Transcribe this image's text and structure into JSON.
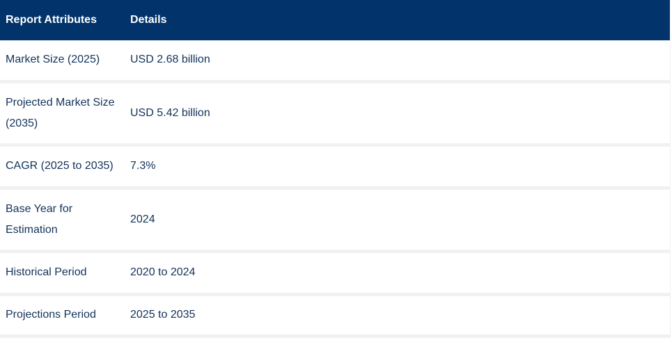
{
  "table": {
    "headers": {
      "attribute": "Report Attributes",
      "details": "Details"
    },
    "rows": [
      {
        "attribute": "Market Size (2025)",
        "details": "USD 2.68 billion"
      },
      {
        "attribute": "Projected Market Size (2035)",
        "details": "USD 5.42 billion"
      },
      {
        "attribute": "CAGR (2025 to 2035)",
        "details": "7.3%"
      },
      {
        "attribute": "Base Year for Estimation",
        "details": "2024"
      },
      {
        "attribute": "Historical Period",
        "details": "2020 to 2024"
      },
      {
        "attribute": "Projections Period",
        "details": "2025 to 2035"
      }
    ]
  },
  "colors": {
    "header_background": "#02346b",
    "header_text": "#ffffff",
    "body_text": "#12325a",
    "row_separator": "#f1f1f1"
  }
}
